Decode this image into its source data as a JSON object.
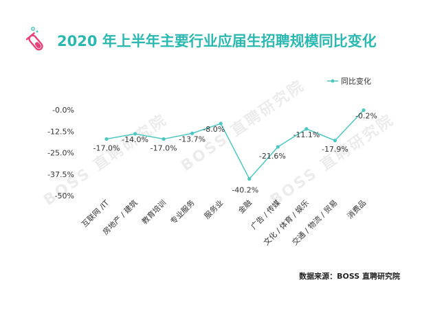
{
  "title": "2020 年上半年主要行业应届生招聘规模同比变化",
  "source": "数据来源：BOSS 直聘研究院",
  "watermark": "BOSS 直聘研究院",
  "icon": "test-tube-icon",
  "colors": {
    "title": "#2bb8b0",
    "line": "#4cc7c1",
    "icon_tube": "#e8417a",
    "icon_bubble": "#4cc7c1"
  },
  "chart_data": {
    "type": "line",
    "title": "2020 年上半年主要行业应届生招聘规模同比变化",
    "legend": {
      "position": "top-right",
      "label": "同比变化"
    },
    "ylim": [
      -50,
      0
    ],
    "yticks": [
      -0.0,
      -12.5,
      -25.0,
      -37.5,
      -50
    ],
    "ytick_labels": [
      "-0.0%",
      "-12.5%",
      "-25.0%",
      "-37.5%",
      "-50%"
    ],
    "grid": false,
    "categories": [
      "互联网 /IT",
      "房地产 / 建筑",
      "教育培训",
      "专业服务",
      "服务业",
      "金融",
      "广告 / 传媒",
      "文化 / 体育 / 娱乐",
      "交通 / 物流 / 贸易",
      "消费品"
    ],
    "series": [
      {
        "name": "同比变化",
        "values": [
          -17.0,
          -14.0,
          -17.0,
          -13.7,
          -8.0,
          -40.2,
          -21.6,
          -11.1,
          -17.9,
          -0.2
        ],
        "labels": [
          "-17.0%",
          "-14.0%",
          "-17.0%",
          "-13.7%",
          "-8.0%",
          "-40.2%",
          "-21.6%",
          "-11.1%",
          "-17.9%",
          "-0.2%"
        ]
      }
    ]
  }
}
